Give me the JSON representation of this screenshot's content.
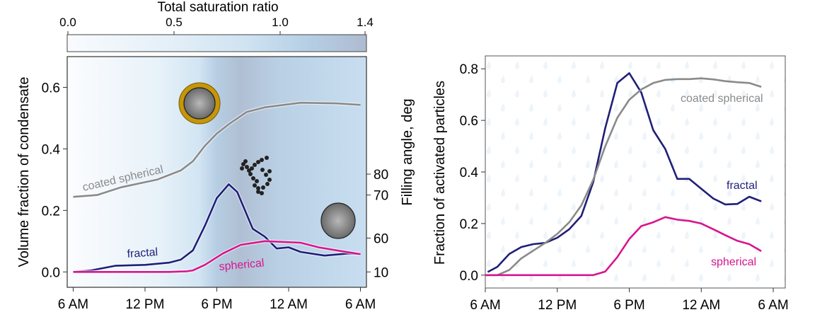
{
  "chart_data": [
    {
      "type": "line",
      "title": "",
      "colorbar": {
        "label": "Total saturation ratio",
        "ticks": [
          "0.0",
          "0.5",
          "1.0",
          "1.4"
        ],
        "tick_values": [
          0.0,
          0.5,
          1.0,
          1.4
        ],
        "range": [
          0,
          1.4
        ]
      },
      "xlabel": "",
      "ylabel": "Volume fraction of condensate",
      "y2label": "Filling angle, deg",
      "xticks": [
        "6 AM",
        "12 PM",
        "6 PM",
        "12 AM",
        "6 AM"
      ],
      "xtick_hours": [
        0,
        6,
        12,
        18,
        24
      ],
      "xlim_hours": [
        -0.5,
        24.5
      ],
      "yticks": [
        "0.0",
        "0.2",
        "0.4",
        "0.6"
      ],
      "ytick_values": [
        0,
        0.2,
        0.4,
        0.6
      ],
      "ylim": [
        -0.05,
        0.7
      ],
      "y2ticks": [
        "10",
        "60",
        "70",
        "80"
      ],
      "y2tick_positions_in_y_units": [
        0.0,
        0.11,
        0.25,
        0.318
      ],
      "series": [
        {
          "name": "coated spherical",
          "color": "#8a8a8a",
          "x": [
            0,
            2,
            4,
            7,
            9,
            10,
            11,
            12,
            13,
            14.5,
            16,
            19,
            22,
            24
          ],
          "y": [
            0.244,
            0.25,
            0.275,
            0.3,
            0.33,
            0.36,
            0.41,
            0.45,
            0.48,
            0.52,
            0.535,
            0.55,
            0.548,
            0.543
          ]
        },
        {
          "name": "fractal",
          "color": "#1f1f78",
          "x": [
            0,
            1.5,
            3.5,
            6,
            8,
            9,
            10,
            11,
            12,
            13,
            13.7,
            15,
            16,
            17,
            18,
            19,
            21,
            23,
            24
          ],
          "y": [
            0,
            0.005,
            0.02,
            0.023,
            0.03,
            0.04,
            0.07,
            0.15,
            0.24,
            0.285,
            0.26,
            0.14,
            0.115,
            0.076,
            0.08,
            0.065,
            0.053,
            0.06,
            0.058
          ]
        },
        {
          "name": "spherical",
          "color": "#d6168e",
          "x": [
            0,
            4,
            8,
            9.5,
            10,
            11,
            12.5,
            14,
            16,
            19,
            20.5,
            22,
            24
          ],
          "y": [
            0,
            0,
            0,
            0.002,
            0.005,
            0.023,
            0.06,
            0.088,
            0.1,
            0.095,
            0.08,
            0.07,
            0.058
          ]
        }
      ]
    },
    {
      "type": "line",
      "title": "",
      "xlabel": "",
      "ylabel": "Fraction of activated particles",
      "xticks": [
        "6 AM",
        "12 PM",
        "6 PM",
        "12 AM",
        "6 AM"
      ],
      "xtick_hours": [
        0,
        6,
        12,
        18,
        24
      ],
      "xlim_hours": [
        0,
        25
      ],
      "yticks": [
        "0.0",
        "0.2",
        "0.4",
        "0.6",
        "0.8"
      ],
      "ytick_values": [
        0,
        0.2,
        0.4,
        0.6,
        0.8
      ],
      "ylim": [
        -0.05,
        0.85
      ],
      "series": [
        {
          "name": "fractal",
          "color": "#1f1f78",
          "x": [
            0.2,
            1,
            2,
            3,
            4,
            5,
            6,
            7,
            8,
            9,
            10,
            11,
            12,
            13,
            14,
            15,
            16,
            17,
            18,
            19,
            20,
            21,
            22,
            23
          ],
          "y": [
            0.012,
            0.032,
            0.082,
            0.109,
            0.12,
            0.125,
            0.145,
            0.178,
            0.229,
            0.361,
            0.571,
            0.745,
            0.783,
            0.708,
            0.562,
            0.489,
            0.373,
            0.373,
            0.335,
            0.297,
            0.274,
            0.276,
            0.304,
            0.286
          ]
        },
        {
          "name": "coated spherical",
          "color": "#8a8a8a",
          "x": [
            0,
            1,
            2,
            3,
            4,
            5,
            6,
            7,
            8,
            9,
            10,
            11,
            12,
            13,
            14,
            15,
            16,
            17,
            18,
            19,
            20,
            21,
            22,
            23
          ],
          "y": [
            0,
            0,
            0.02,
            0.065,
            0.095,
            0.125,
            0.16,
            0.205,
            0.27,
            0.37,
            0.5,
            0.61,
            0.68,
            0.72,
            0.745,
            0.757,
            0.76,
            0.76,
            0.763,
            0.759,
            0.752,
            0.748,
            0.745,
            0.73
          ]
        },
        {
          "name": "spherical",
          "color": "#d6168e",
          "x": [
            0,
            1,
            2,
            3,
            4,
            5,
            6,
            7,
            8,
            9,
            10,
            11,
            12,
            13,
            14,
            15,
            16,
            17,
            18,
            19,
            20,
            21,
            22,
            23
          ],
          "y": [
            0,
            0,
            0,
            0,
            0,
            0,
            0,
            0,
            0,
            0,
            0.014,
            0.07,
            0.14,
            0.19,
            0.205,
            0.225,
            0.215,
            0.21,
            0.2,
            0.178,
            0.155,
            0.133,
            0.12,
            0.093
          ]
        }
      ]
    }
  ]
}
